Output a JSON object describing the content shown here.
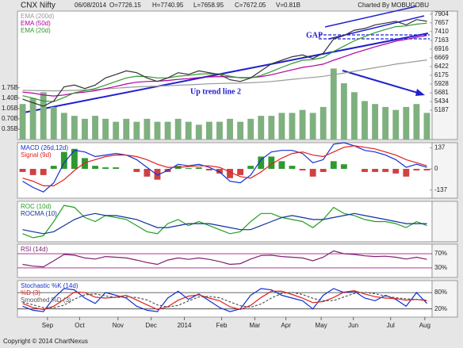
{
  "header": {
    "title": "CNX Nifty",
    "date": "06/08/2014",
    "open": "O=7726.15",
    "high": "H=7740.95",
    "low": "L=7658.95",
    "close": "C=7672.05",
    "volume": "V=0.81B",
    "credit": "Charted By MOBUGOBU"
  },
  "footer": "Copyright © 2014 ChartNexus",
  "xticks": [
    {
      "value": 2.4,
      "label": "Sep"
    },
    {
      "value": 5.5,
      "label": "Oct"
    },
    {
      "value": 9.2,
      "label": "Nov"
    },
    {
      "value": 12.4,
      "label": "Dec"
    },
    {
      "value": 15.6,
      "label": "2014"
    },
    {
      "value": 19.2,
      "label": "Feb"
    },
    {
      "value": 22.4,
      "label": "Mar"
    },
    {
      "value": 25.4,
      "label": "Apr"
    },
    {
      "value": 28.8,
      "label": "May"
    },
    {
      "value": 31.9,
      "label": "Jun"
    },
    {
      "value": 35.5,
      "label": "Jul"
    },
    {
      "value": 38.8,
      "label": "Aug"
    }
  ],
  "chart_data": [
    {
      "type": "line",
      "annotations": [
        "GAP",
        "Up trend line 2"
      ],
      "ylim": [
        4360,
        7990
      ],
      "yticks": [
        7904,
        7657,
        7410,
        7163,
        6916,
        6669,
        6422,
        6175,
        5928,
        5681,
        5434,
        5187
      ],
      "y2lim": [
        0,
        4.34
      ],
      "y2ticks": [
        {
          "value": 1.75,
          "label": "1.75B"
        },
        {
          "value": 1.4,
          "label": "1.40B"
        },
        {
          "value": 1.05,
          "label": "1.05B"
        },
        {
          "value": 0.7,
          "label": "0.70B"
        },
        {
          "value": 0.35,
          "label": "0.35B"
        }
      ],
      "series": [
        {
          "color": "#7fb07f",
          "style": "bar",
          "axis": "y2",
          "values": [
            1.2,
            1.4,
            1.6,
            1.1,
            0.9,
            0.8,
            0.7,
            0.8,
            0.7,
            0.6,
            0.7,
            0.6,
            0.7,
            0.6,
            0.6,
            0.7,
            0.6,
            0.5,
            0.6,
            0.6,
            0.7,
            0.6,
            0.7,
            0.8,
            0.8,
            0.9,
            0.9,
            1.0,
            0.9,
            1.1,
            2.4,
            1.9,
            1.6,
            1.3,
            1.2,
            1.1,
            1.0,
            1.1,
            1.2,
            0.9
          ]
        },
        {
          "color": "#999999",
          "name": "EMA (200d)",
          "values": [
            5750,
            5745,
            5740,
            5735,
            5740,
            5750,
            5760,
            5770,
            5790,
            5810,
            5830,
            5850,
            5860,
            5870,
            5880,
            5895,
            5905,
            5920,
            5935,
            5945,
            5950,
            5955,
            5965,
            5980,
            6000,
            6030,
            6060,
            6090,
            6115,
            6145,
            6190,
            6240,
            6290,
            6340,
            6390,
            6440,
            6490,
            6530,
            6570,
            6610
          ]
        },
        {
          "color": "#b000a0",
          "name": "EMA (50d)",
          "values": [
            5700,
            5670,
            5620,
            5590,
            5620,
            5670,
            5700,
            5740,
            5800,
            5860,
            5930,
            5980,
            6000,
            6010,
            6030,
            6060,
            6080,
            6110,
            6130,
            6140,
            6130,
            6110,
            6110,
            6140,
            6190,
            6260,
            6330,
            6400,
            6440,
            6490,
            6600,
            6700,
            6800,
            6890,
            6980,
            7060,
            7140,
            7190,
            7250,
            7300
          ]
        },
        {
          "color": "#2e9a2e",
          "name": "EMA (20d)",
          "values": [
            5600,
            5530,
            5450,
            5430,
            5550,
            5680,
            5740,
            5800,
            5900,
            6000,
            6100,
            6150,
            6140,
            6100,
            6100,
            6150,
            6170,
            6210,
            6220,
            6210,
            6150,
            6100,
            6100,
            6170,
            6280,
            6400,
            6510,
            6600,
            6620,
            6680,
            6850,
            7000,
            7150,
            7270,
            7380,
            7470,
            7550,
            7570,
            7620,
            7650
          ]
        },
        {
          "color": "#333333",
          "values": [
            5500,
            5400,
            5300,
            5450,
            5850,
            5900,
            5800,
            5900,
            6100,
            6200,
            6300,
            6250,
            6100,
            6000,
            6100,
            6250,
            6200,
            6300,
            6250,
            6200,
            6050,
            6000,
            6100,
            6300,
            6500,
            6600,
            6700,
            6750,
            6650,
            6800,
            7200,
            7300,
            7450,
            7500,
            7600,
            7650,
            7700,
            7600,
            7750,
            7700
          ]
        }
      ]
    },
    {
      "type": "line",
      "ylim": [
        -190,
        170
      ],
      "yticks": [
        137,
        0,
        -137
      ],
      "series": [
        {
          "color": "#2e9a2e",
          "neg_color": "#d04040",
          "style": "bar",
          "values": [
            -20,
            -40,
            -40,
            20,
            110,
            130,
            70,
            20,
            10,
            10,
            0,
            -20,
            -50,
            -70,
            -20,
            20,
            5,
            10,
            -10,
            -30,
            -60,
            -40,
            20,
            80,
            80,
            50,
            20,
            -10,
            -50,
            -20,
            50,
            30,
            0,
            -20,
            -20,
            -20,
            -30,
            -50,
            -10,
            -10
          ]
        },
        {
          "color": "#1030d0",
          "name": "MACD (26d,12d)",
          "values": [
            -80,
            -120,
            -150,
            -90,
            40,
            120,
            110,
            80,
            90,
            100,
            90,
            60,
            10,
            -40,
            -10,
            30,
            20,
            30,
            10,
            -20,
            -80,
            -90,
            -40,
            60,
            110,
            120,
            120,
            100,
            40,
            60,
            160,
            170,
            150,
            120,
            110,
            90,
            60,
            10,
            30,
            10
          ]
        },
        {
          "color": "#e02020",
          "name": "Signal (9d)",
          "values": [
            -60,
            -80,
            -110,
            -110,
            -70,
            -10,
            40,
            60,
            80,
            90,
            90,
            80,
            60,
            30,
            10,
            10,
            15,
            20,
            20,
            10,
            -20,
            -50,
            -60,
            -20,
            30,
            70,
            100,
            110,
            90,
            80,
            110,
            140,
            150,
            140,
            130,
            110,
            90,
            60,
            40,
            20
          ]
        }
      ]
    },
    {
      "type": "line",
      "ylim": [
        -8,
        12
      ],
      "yticks": [],
      "series": [
        {
          "color": "#20a020",
          "name": "ROC (10d)",
          "values": [
            -4,
            -6,
            -5,
            2,
            10,
            9,
            4,
            2,
            5,
            4,
            3,
            0,
            -3,
            -4,
            1,
            3,
            0,
            2,
            0,
            -2,
            -4,
            -3,
            2,
            6,
            6,
            4,
            3,
            2,
            -1,
            3,
            9,
            6,
            5,
            3,
            2,
            2,
            1,
            -1,
            2,
            0
          ]
        },
        {
          "color": "#1030a0",
          "name": "ROCMA (10)",
          "values": [
            -2,
            -3,
            -4,
            -3,
            0,
            3,
            5,
            6,
            5,
            5,
            4,
            3,
            1,
            -1,
            -1,
            0,
            1,
            1,
            1,
            0,
            -1,
            -2,
            -2,
            0,
            2,
            4,
            5,
            4,
            3,
            3,
            4,
            5,
            6,
            5,
            4,
            3,
            2,
            1,
            1,
            1
          ]
        }
      ]
    },
    {
      "type": "line",
      "ylim": [
        3,
        97
      ],
      "yticks": [
        {
          "value": 70,
          "label": "70%"
        },
        {
          "value": 30,
          "label": "30%"
        }
      ],
      "grid_color": "#a02080",
      "series": [
        {
          "color": "#802070",
          "name": "RSI (14d)",
          "values": [
            40,
            35,
            33,
            50,
            68,
            66,
            58,
            55,
            62,
            60,
            58,
            52,
            45,
            40,
            52,
            58,
            54,
            58,
            54,
            48,
            40,
            42,
            55,
            65,
            66,
            62,
            60,
            58,
            50,
            60,
            78,
            70,
            68,
            64,
            62,
            63,
            60,
            55,
            60,
            54
          ]
        }
      ]
    },
    {
      "type": "line",
      "ylim": [
        -10,
        124
      ],
      "yticks": [
        {
          "value": 80,
          "label": "80%"
        },
        {
          "value": 20,
          "label": "20%"
        }
      ],
      "grid_color": "#333333",
      "series": [
        {
          "color": "#1030d0",
          "name": "Stochastic %K (14d)",
          "values": [
            30,
            15,
            10,
            60,
            95,
            90,
            60,
            40,
            80,
            70,
            60,
            30,
            15,
            10,
            60,
            85,
            55,
            75,
            50,
            25,
            10,
            20,
            70,
            95,
            90,
            70,
            60,
            50,
            20,
            70,
            95,
            80,
            85,
            60,
            50,
            70,
            55,
            30,
            80,
            40
          ]
        },
        {
          "color": "#e02020",
          "name": "%D (3)",
          "values": [
            40,
            25,
            18,
            30,
            55,
            82,
            80,
            63,
            60,
            63,
            70,
            53,
            35,
            18,
            28,
            52,
            67,
            72,
            60,
            50,
            28,
            18,
            33,
            62,
            85,
            85,
            73,
            60,
            43,
            47,
            62,
            82,
            87,
            75,
            65,
            60,
            58,
            52,
            55,
            50
          ]
        },
        {
          "color": "#555555",
          "name": "Smoothed %D (3)",
          "dash": true,
          "values": [
            45,
            35,
            25,
            24,
            34,
            56,
            72,
            75,
            68,
            62,
            64,
            62,
            53,
            35,
            27,
            33,
            49,
            64,
            66,
            61,
            46,
            32,
            26,
            38,
            60,
            77,
            81,
            73,
            59,
            50,
            51,
            64,
            77,
            81,
            76,
            67,
            61,
            57,
            55,
            52
          ]
        }
      ]
    }
  ]
}
